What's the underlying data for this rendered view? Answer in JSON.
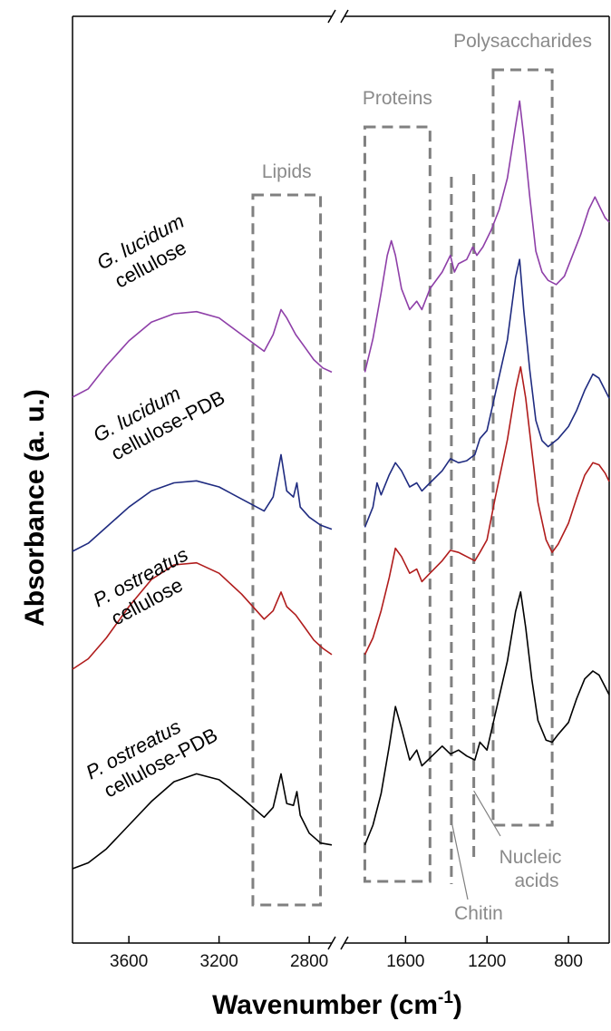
{
  "chart_data": {
    "type": "line",
    "xlabel": "Wavenumber (cm",
    "xlabel_sup": "-1",
    "xlabel_close": ")",
    "ylabel": "Absorbance (a. u.)",
    "axis_break": true,
    "x_segments": [
      {
        "range": [
          3850,
          2700
        ],
        "ticks": [
          3600,
          3200,
          2800
        ],
        "tick_labels": [
          "3600",
          "3200",
          "2800"
        ]
      },
      {
        "range": [
          1900,
          600
        ],
        "ticks": [
          1600,
          1200,
          800
        ],
        "tick_labels": [
          "1600",
          "1200",
          "800"
        ]
      }
    ],
    "colors": {
      "black": "#000000",
      "red": "#b01c1c",
      "blue": "#1f2b80",
      "purple": "#8e3fa8",
      "region": "#808080"
    },
    "series": [
      {
        "label_lines": [
          "P. ostreatus",
          "cellulose-PDB"
        ],
        "italic_part": "P. ostreatus",
        "color": "#000000",
        "offset": 0,
        "points": [
          [
            3850,
            0.0
          ],
          [
            3780,
            0.03
          ],
          [
            3700,
            0.1
          ],
          [
            3600,
            0.22
          ],
          [
            3500,
            0.34
          ],
          [
            3400,
            0.44
          ],
          [
            3300,
            0.48
          ],
          [
            3200,
            0.45
          ],
          [
            3100,
            0.36
          ],
          [
            3000,
            0.26
          ],
          [
            2960,
            0.31
          ],
          [
            2925,
            0.48
          ],
          [
            2900,
            0.33
          ],
          [
            2870,
            0.32
          ],
          [
            2855,
            0.39
          ],
          [
            2840,
            0.27
          ],
          [
            2800,
            0.18
          ],
          [
            2750,
            0.13
          ],
          [
            2700,
            0.12
          ],
          [
            1800,
            0.12
          ],
          [
            1760,
            0.22
          ],
          [
            1720,
            0.38
          ],
          [
            1680,
            0.62
          ],
          [
            1650,
            0.82
          ],
          [
            1620,
            0.71
          ],
          [
            1580,
            0.55
          ],
          [
            1545,
            0.6
          ],
          [
            1520,
            0.52
          ],
          [
            1480,
            0.56
          ],
          [
            1420,
            0.62
          ],
          [
            1380,
            0.58
          ],
          [
            1340,
            0.6
          ],
          [
            1300,
            0.57
          ],
          [
            1260,
            0.55
          ],
          [
            1235,
            0.64
          ],
          [
            1200,
            0.6
          ],
          [
            1160,
            0.78
          ],
          [
            1100,
            1.05
          ],
          [
            1060,
            1.3
          ],
          [
            1035,
            1.4
          ],
          [
            1010,
            1.22
          ],
          [
            980,
            0.96
          ],
          [
            950,
            0.75
          ],
          [
            910,
            0.65
          ],
          [
            880,
            0.64
          ],
          [
            850,
            0.68
          ],
          [
            800,
            0.74
          ],
          [
            760,
            0.86
          ],
          [
            720,
            0.96
          ],
          [
            680,
            1.0
          ],
          [
            650,
            0.98
          ],
          [
            620,
            0.92
          ],
          [
            600,
            0.88
          ]
        ]
      },
      {
        "label_lines": [
          "P. ostreatus",
          "cellulose"
        ],
        "italic_part": "P. ostreatus",
        "color": "#b01c1c",
        "offset": 1,
        "points": [
          [
            3850,
            0.0
          ],
          [
            3780,
            0.05
          ],
          [
            3700,
            0.15
          ],
          [
            3600,
            0.3
          ],
          [
            3500,
            0.43
          ],
          [
            3400,
            0.5
          ],
          [
            3300,
            0.51
          ],
          [
            3200,
            0.46
          ],
          [
            3100,
            0.36
          ],
          [
            3000,
            0.24
          ],
          [
            2960,
            0.28
          ],
          [
            2925,
            0.37
          ],
          [
            2900,
            0.3
          ],
          [
            2860,
            0.26
          ],
          [
            2820,
            0.2
          ],
          [
            2780,
            0.14
          ],
          [
            2740,
            0.1
          ],
          [
            2700,
            0.07
          ],
          [
            1800,
            0.07
          ],
          [
            1760,
            0.15
          ],
          [
            1720,
            0.28
          ],
          [
            1680,
            0.44
          ],
          [
            1650,
            0.58
          ],
          [
            1620,
            0.54
          ],
          [
            1580,
            0.46
          ],
          [
            1545,
            0.48
          ],
          [
            1520,
            0.42
          ],
          [
            1480,
            0.46
          ],
          [
            1420,
            0.52
          ],
          [
            1380,
            0.57
          ],
          [
            1340,
            0.56
          ],
          [
            1300,
            0.54
          ],
          [
            1260,
            0.52
          ],
          [
            1235,
            0.56
          ],
          [
            1200,
            0.62
          ],
          [
            1160,
            0.82
          ],
          [
            1100,
            1.1
          ],
          [
            1060,
            1.34
          ],
          [
            1035,
            1.45
          ],
          [
            1010,
            1.3
          ],
          [
            980,
            1.05
          ],
          [
            950,
            0.8
          ],
          [
            910,
            0.62
          ],
          [
            880,
            0.56
          ],
          [
            850,
            0.6
          ],
          [
            800,
            0.7
          ],
          [
            760,
            0.82
          ],
          [
            720,
            0.93
          ],
          [
            680,
            0.99
          ],
          [
            650,
            0.98
          ],
          [
            620,
            0.94
          ],
          [
            600,
            0.9
          ]
        ]
      },
      {
        "label_lines": [
          "G. lucidum",
          "cellulose-PDB"
        ],
        "italic_part": "G. lucidum",
        "color": "#1f2b80",
        "offset": 2,
        "points": [
          [
            3850,
            0.0
          ],
          [
            3780,
            0.04
          ],
          [
            3700,
            0.12
          ],
          [
            3600,
            0.22
          ],
          [
            3500,
            0.3
          ],
          [
            3400,
            0.34
          ],
          [
            3300,
            0.35
          ],
          [
            3200,
            0.32
          ],
          [
            3100,
            0.26
          ],
          [
            3000,
            0.2
          ],
          [
            2960,
            0.27
          ],
          [
            2925,
            0.48
          ],
          [
            2900,
            0.3
          ],
          [
            2870,
            0.27
          ],
          [
            2855,
            0.34
          ],
          [
            2840,
            0.22
          ],
          [
            2800,
            0.17
          ],
          [
            2750,
            0.13
          ],
          [
            2700,
            0.11
          ],
          [
            1800,
            0.12
          ],
          [
            1760,
            0.22
          ],
          [
            1740,
            0.34
          ],
          [
            1720,
            0.28
          ],
          [
            1680,
            0.38
          ],
          [
            1650,
            0.44
          ],
          [
            1620,
            0.4
          ],
          [
            1580,
            0.32
          ],
          [
            1545,
            0.34
          ],
          [
            1520,
            0.3
          ],
          [
            1480,
            0.34
          ],
          [
            1420,
            0.4
          ],
          [
            1380,
            0.46
          ],
          [
            1340,
            0.44
          ],
          [
            1300,
            0.45
          ],
          [
            1260,
            0.48
          ],
          [
            1235,
            0.56
          ],
          [
            1200,
            0.6
          ],
          [
            1160,
            0.78
          ],
          [
            1100,
            1.05
          ],
          [
            1060,
            1.36
          ],
          [
            1040,
            1.45
          ],
          [
            1020,
            1.2
          ],
          [
            990,
            0.9
          ],
          [
            960,
            0.65
          ],
          [
            930,
            0.55
          ],
          [
            900,
            0.52
          ],
          [
            850,
            0.56
          ],
          [
            800,
            0.62
          ],
          [
            760,
            0.7
          ],
          [
            720,
            0.8
          ],
          [
            680,
            0.88
          ],
          [
            650,
            0.86
          ],
          [
            620,
            0.8
          ],
          [
            600,
            0.76
          ]
        ]
      },
      {
        "label_lines": [
          "G. lucidum",
          "cellulose"
        ],
        "italic_part": "G. lucidum",
        "color": "#8e3fa8",
        "offset": 3,
        "points": [
          [
            3850,
            0.0
          ],
          [
            3780,
            0.04
          ],
          [
            3700,
            0.15
          ],
          [
            3600,
            0.27
          ],
          [
            3500,
            0.36
          ],
          [
            3400,
            0.4
          ],
          [
            3300,
            0.41
          ],
          [
            3200,
            0.38
          ],
          [
            3100,
            0.3
          ],
          [
            3000,
            0.22
          ],
          [
            2960,
            0.3
          ],
          [
            2925,
            0.42
          ],
          [
            2900,
            0.38
          ],
          [
            2860,
            0.3
          ],
          [
            2820,
            0.24
          ],
          [
            2780,
            0.18
          ],
          [
            2740,
            0.14
          ],
          [
            2700,
            0.12
          ],
          [
            1800,
            0.12
          ],
          [
            1760,
            0.28
          ],
          [
            1720,
            0.5
          ],
          [
            1690,
            0.68
          ],
          [
            1670,
            0.75
          ],
          [
            1650,
            0.68
          ],
          [
            1620,
            0.52
          ],
          [
            1580,
            0.42
          ],
          [
            1545,
            0.46
          ],
          [
            1520,
            0.42
          ],
          [
            1480,
            0.52
          ],
          [
            1420,
            0.6
          ],
          [
            1380,
            0.68
          ],
          [
            1360,
            0.6
          ],
          [
            1340,
            0.64
          ],
          [
            1300,
            0.66
          ],
          [
            1270,
            0.72
          ],
          [
            1250,
            0.68
          ],
          [
            1220,
            0.72
          ],
          [
            1180,
            0.8
          ],
          [
            1140,
            0.9
          ],
          [
            1100,
            1.05
          ],
          [
            1060,
            1.3
          ],
          [
            1040,
            1.42
          ],
          [
            1020,
            1.25
          ],
          [
            990,
            0.96
          ],
          [
            960,
            0.7
          ],
          [
            930,
            0.6
          ],
          [
            900,
            0.56
          ],
          [
            860,
            0.54
          ],
          [
            820,
            0.58
          ],
          [
            780,
            0.68
          ],
          [
            740,
            0.78
          ],
          [
            700,
            0.9
          ],
          [
            670,
            0.96
          ],
          [
            640,
            0.9
          ],
          [
            620,
            0.86
          ],
          [
            600,
            0.84
          ]
        ]
      }
    ],
    "regions": [
      {
        "name": "Lipids",
        "x": [
          3050,
          2750
        ]
      },
      {
        "name": "Proteins",
        "x": [
          1800,
          1480
        ]
      },
      {
        "name": "Chitin",
        "x": [
          1375,
          1365
        ]
      },
      {
        "name": "Nucleic acids",
        "x": [
          1265,
          1255
        ]
      },
      {
        "name": "Polysaccharides",
        "x": [
          1170,
          880
        ]
      }
    ]
  }
}
